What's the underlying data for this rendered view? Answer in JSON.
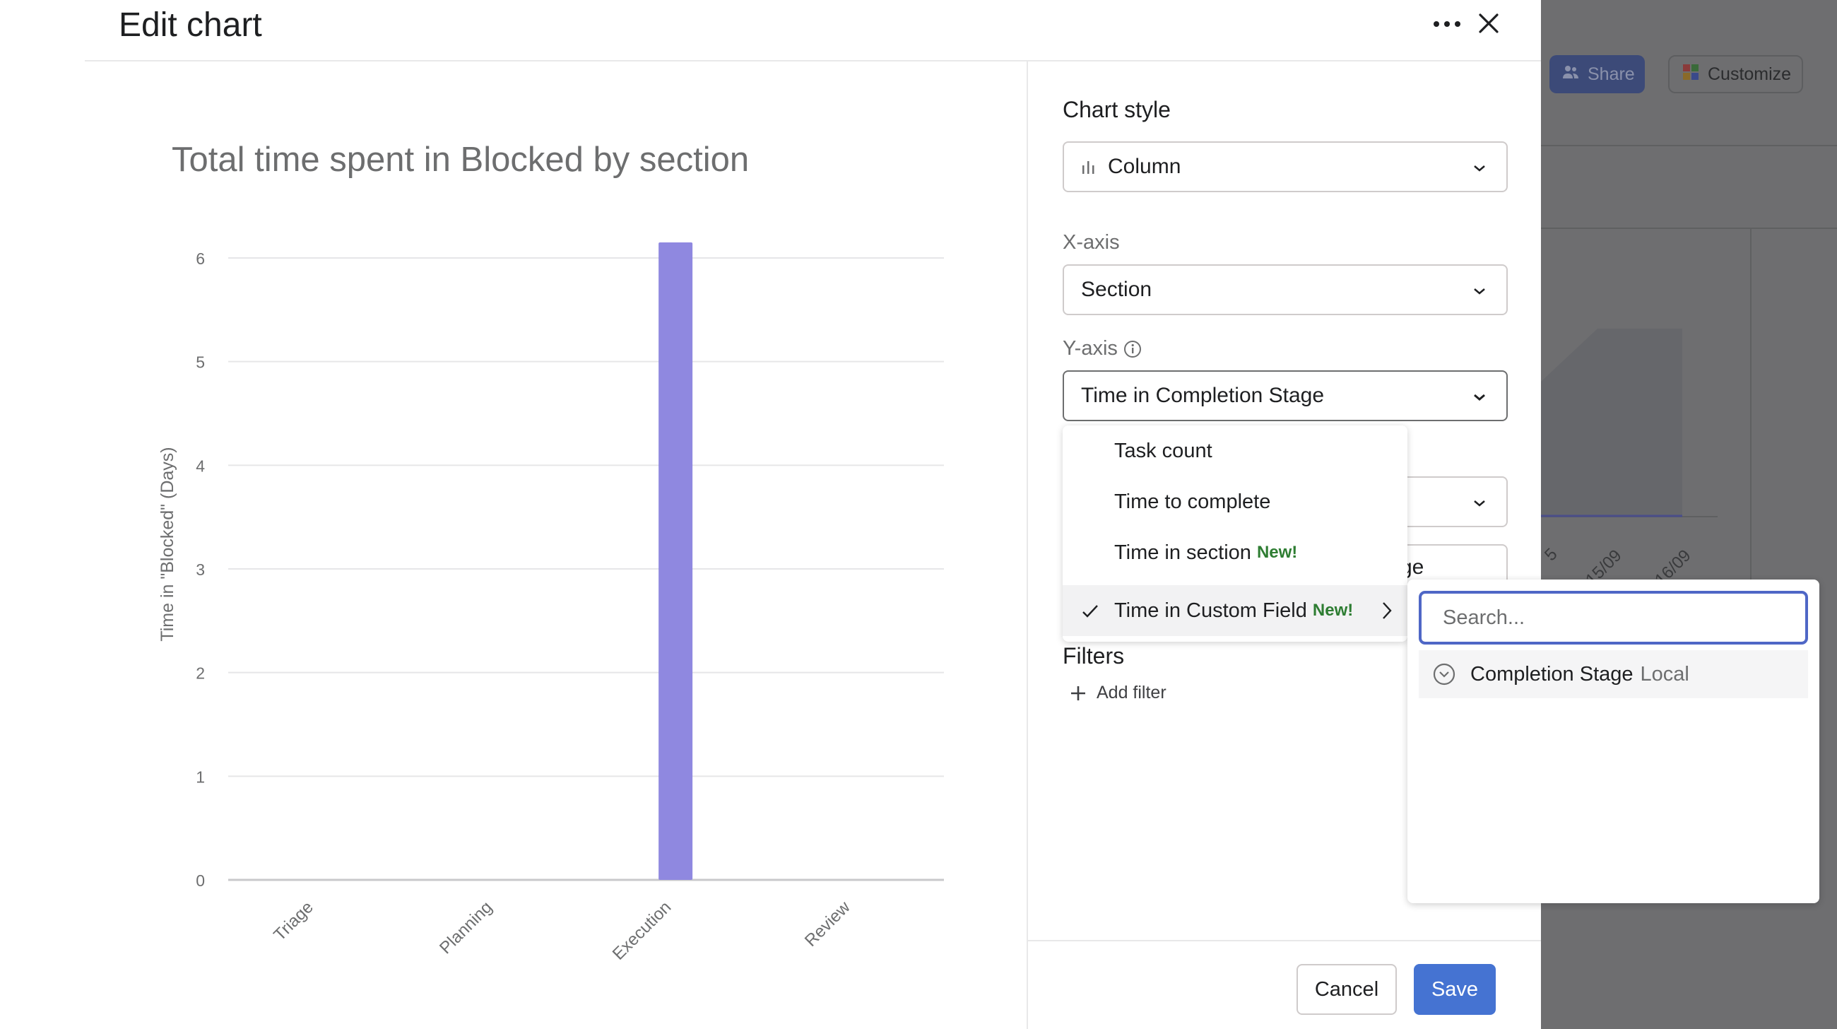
{
  "header": {
    "title": "Edit chart",
    "more_icon": "more-horizontal-icon",
    "close_icon": "close-icon"
  },
  "background": {
    "share_label": "Share",
    "customize_label": "Customize",
    "date_ticks": [
      "15/09",
      "16/09"
    ],
    "partial_tick": "5"
  },
  "chart_data": {
    "type": "bar",
    "title": "Total time spent in Blocked by section",
    "xlabel": "",
    "ylabel": "Time in \"Blocked\" (Days)",
    "categories": [
      "Triage",
      "Planning",
      "Execution",
      "Review"
    ],
    "values": [
      0,
      0,
      6.15,
      0
    ],
    "ylim": [
      0,
      6
    ],
    "yticks": [
      0,
      1,
      2,
      3,
      4,
      5,
      6
    ],
    "grid": true,
    "bar_color": "#8f88e0"
  },
  "panel": {
    "chart_style": {
      "label": "Chart style",
      "value": "Column",
      "icon": "column-chart-icon"
    },
    "x_axis": {
      "label": "X-axis",
      "value": "Section"
    },
    "y_axis": {
      "label": "Y-axis",
      "info_icon": "info-icon",
      "value": "Time in Completion Stage",
      "menu": [
        {
          "label": "Task count",
          "tag": "",
          "selected": false
        },
        {
          "label": "Time to complete",
          "tag": "",
          "selected": false
        },
        {
          "label": "Time in section",
          "tag": "New!",
          "selected": false
        },
        {
          "label": "Time in Custom Field",
          "tag": "New!",
          "selected": true
        }
      ]
    },
    "hidden_field_partial": "ge",
    "submenu": {
      "search_placeholder": "Search...",
      "option_label": "Completion Stage",
      "option_tag": "Local"
    },
    "filters": {
      "label": "Filters",
      "add_label": "Add filter"
    }
  },
  "footer": {
    "cancel_label": "Cancel",
    "save_label": "Save"
  }
}
